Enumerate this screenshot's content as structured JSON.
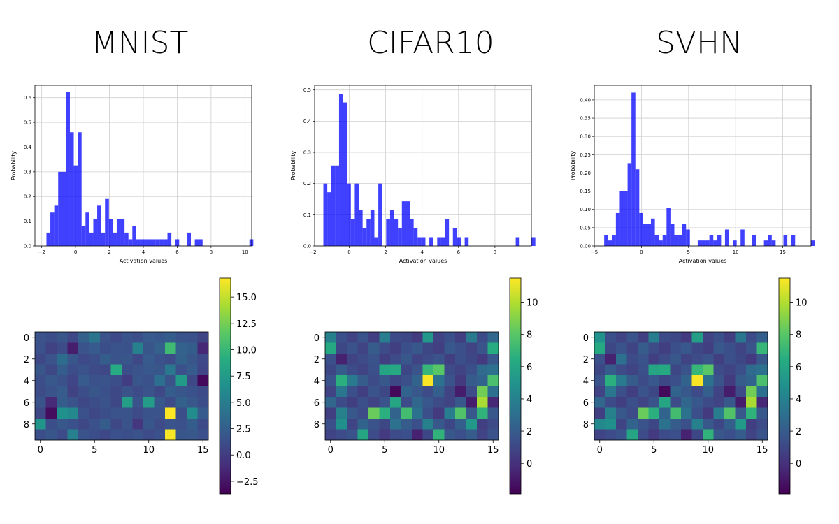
{
  "figure": {
    "titles": [
      "MNIST",
      "CIFAR10",
      "SVHN"
    ]
  },
  "chart_data": [
    {
      "type": "bar",
      "title": "MNIST",
      "xlabel": "Activation values",
      "ylabel": "Probability",
      "xlim": [
        -2.4,
        10.4
      ],
      "ylim": [
        0,
        0.65
      ],
      "xticks": [
        -2,
        0,
        2,
        4,
        6,
        8,
        10
      ],
      "yticks": [
        0.0,
        0.1,
        0.2,
        0.3,
        0.4,
        0.5,
        0.6
      ],
      "grid": true,
      "color": "#0000ff",
      "bin_start": -1.72,
      "bin_width": 0.2305,
      "values": [
        0.054,
        0.135,
        0.163,
        0.3,
        0.3,
        0.623,
        0.46,
        0.326,
        0.46,
        0.082,
        0.135,
        0.054,
        0.109,
        0.163,
        0.054,
        0.19,
        0.109,
        0.054,
        0.109,
        0.109,
        0.054,
        0.027,
        0.082,
        0.027,
        0.027,
        0.027,
        0.027,
        0.027,
        0.027,
        0.027,
        0.027,
        0.054,
        0,
        0.027,
        0,
        0,
        0.054,
        0,
        0.027,
        0.027,
        0,
        0,
        0,
        0,
        0,
        0,
        0,
        0,
        0,
        0,
        0,
        0,
        0.027
      ]
    },
    {
      "type": "bar",
      "title": "CIFAR10",
      "xlabel": "Activation values",
      "ylabel": "Probability",
      "xlim": [
        -1.9,
        10.0
      ],
      "ylim": [
        0,
        0.515
      ],
      "xticks": [
        -2,
        0,
        2,
        4,
        6,
        8
      ],
      "yticks": [
        0.0,
        0.1,
        0.2,
        0.3,
        0.4,
        0.5
      ],
      "grid": true,
      "color": "#0000ff",
      "bin_start": -1.42,
      "bin_width": 0.2155,
      "values": [
        0.2,
        0.172,
        0.258,
        0.258,
        0.488,
        0.46,
        0.2,
        0.086,
        0.2,
        0.115,
        0.057,
        0.086,
        0.115,
        0.028,
        0.2,
        0,
        0.086,
        0.115,
        0.086,
        0.057,
        0.143,
        0.143,
        0.086,
        0.057,
        0.028,
        0.028,
        0,
        0.028,
        0,
        0.028,
        0.028,
        0.086,
        0,
        0.057,
        0.028,
        0,
        0.028,
        0,
        0,
        0,
        0,
        0,
        0,
        0,
        0,
        0,
        0,
        0,
        0,
        0.028,
        0,
        0,
        0,
        0.028
      ]
    },
    {
      "type": "bar",
      "title": "SVHN",
      "xlabel": "Activation values",
      "ylabel": "Probability",
      "xlim": [
        -5.0,
        18.0
      ],
      "ylim": [
        0,
        0.44
      ],
      "xticks": [
        -5,
        0,
        5,
        10,
        15
      ],
      "yticks": [
        0.0,
        0.05,
        0.1,
        0.15,
        0.2,
        0.25,
        0.3,
        0.35,
        0.4
      ],
      "grid": true,
      "color": "#0000ff",
      "bin_start": -3.95,
      "bin_width": 0.4135,
      "values": [
        0.03,
        0.015,
        0.03,
        0.09,
        0.15,
        0.15,
        0.225,
        0.42,
        0.21,
        0.09,
        0.06,
        0.06,
        0.075,
        0.03,
        0.015,
        0.03,
        0.105,
        0.06,
        0.03,
        0.03,
        0.06,
        0.045,
        0,
        0,
        0.015,
        0.015,
        0.015,
        0.03,
        0.015,
        0.03,
        0,
        0.045,
        0,
        0.015,
        0,
        0.045,
        0,
        0,
        0.03,
        0,
        0,
        0.015,
        0.03,
        0.015,
        0,
        0,
        0.03,
        0,
        0.03,
        0,
        0,
        0,
        0,
        0.015
      ]
    },
    {
      "type": "heatmap",
      "title": "MNIST",
      "rows": 10,
      "cols": 16,
      "xticks": [
        0,
        5,
        10,
        15
      ],
      "yticks": [
        0,
        2,
        4,
        6,
        8
      ],
      "colormap": "viridis",
      "vmin": -3.7,
      "vmax": 16.8,
      "colorbar_ticks": [
        15.0,
        12.5,
        10.0,
        7.5,
        5.0,
        2.5,
        0.0,
        -2.5
      ],
      "colorbar_labels": [
        "15.0",
        "12.5",
        "10.0",
        "7.5",
        "5.0",
        "2.5",
        "0.0",
        "−2.5"
      ],
      "matrix": [
        [
          1.5,
          1.2,
          1.8,
          0.8,
          2.6,
          4.2,
          1.5,
          0.9,
          1.6,
          1.3,
          2.2,
          1.9,
          2.4,
          1.6,
          1.4,
          0.5
        ],
        [
          1.4,
          0.4,
          1.0,
          -2.0,
          1.6,
          2.2,
          1.2,
          1.6,
          1.4,
          5.2,
          1.8,
          2.6,
          10.3,
          2.8,
          2.4,
          -1.4
        ],
        [
          0.8,
          1.6,
          3.6,
          1.8,
          0.9,
          1.2,
          2.4,
          1.6,
          1.8,
          0.8,
          2.2,
          1.4,
          1.0,
          2.6,
          1.8,
          0.9
        ],
        [
          1.8,
          0.8,
          2.4,
          1.2,
          1.6,
          1.0,
          0.8,
          8.9,
          1.2,
          1.6,
          2.0,
          1.8,
          4.6,
          1.4,
          2.2,
          0.6
        ],
        [
          1.2,
          2.0,
          1.4,
          0.6,
          2.2,
          1.4,
          1.6,
          1.2,
          0.0,
          1.8,
          1.4,
          3.8,
          1.6,
          7.5,
          0.8,
          -3.2
        ],
        [
          1.0,
          1.6,
          2.2,
          0.4,
          1.2,
          1.8,
          1.4,
          0.8,
          1.6,
          1.0,
          1.6,
          0.8,
          2.4,
          1.8,
          1.4,
          1.0
        ],
        [
          1.6,
          -1.2,
          2.4,
          1.6,
          0.8,
          1.2,
          1.6,
          0.8,
          7.8,
          1.6,
          7.6,
          2.0,
          1.0,
          2.6,
          2.0,
          1.2
        ],
        [
          0.8,
          -3.0,
          6.6,
          6.0,
          1.4,
          0.8,
          1.2,
          1.6,
          1.6,
          1.0,
          1.6,
          1.6,
          16.8,
          1.2,
          6.2,
          2.2
        ],
        [
          7.0,
          1.2,
          2.0,
          1.4,
          0.8,
          1.4,
          2.4,
          0.8,
          1.6,
          -0.4,
          1.8,
          1.0,
          1.6,
          1.4,
          2.4,
          1.0
        ],
        [
          1.2,
          1.8,
          1.0,
          5.2,
          1.6,
          1.2,
          0.8,
          1.4,
          1.2,
          1.6,
          1.0,
          1.4,
          16.6,
          1.8,
          2.0,
          1.4
        ]
      ]
    },
    {
      "type": "heatmap",
      "title": "CIFAR10",
      "rows": 10,
      "cols": 16,
      "xticks": [
        0,
        5,
        10,
        15
      ],
      "yticks": [
        0,
        2,
        4,
        6,
        8
      ],
      "colormap": "viridis",
      "vmin": -1.9,
      "vmax": 11.5,
      "colorbar_ticks": [
        10,
        8,
        6,
        4,
        2,
        0
      ],
      "colorbar_labels": [
        "10",
        "8",
        "6",
        "4",
        "2",
        "0"
      ],
      "matrix": [
        [
          4.0,
          1.4,
          0.8,
          1.6,
          0.6,
          3.8,
          1.2,
          1.0,
          0.4,
          5.2,
          0.8,
          1.4,
          0.6,
          3.6,
          1.2,
          2.6
        ],
        [
          6.2,
          1.0,
          1.6,
          0.8,
          2.0,
          1.2,
          0.6,
          1.4,
          1.8,
          1.0,
          0.6,
          1.8,
          1.4,
          0.8,
          1.6,
          6.4
        ],
        [
          1.4,
          -0.6,
          0.8,
          1.2,
          1.6,
          0.6,
          1.2,
          1.8,
          0.8,
          1.2,
          1.6,
          0.6,
          1.4,
          1.0,
          0.4,
          1.8
        ],
        [
          1.0,
          2.0,
          1.2,
          0.8,
          1.4,
          6.0,
          6.2,
          1.0,
          1.6,
          7.0,
          8.0,
          1.2,
          0.8,
          1.4,
          2.8,
          3.2
        ],
        [
          1.6,
          6.6,
          3.6,
          2.0,
          1.2,
          1.8,
          1.0,
          1.4,
          2.4,
          11.4,
          3.2,
          1.6,
          0.4,
          2.0,
          2.4,
          7.6
        ],
        [
          0.8,
          3.4,
          1.4,
          0.6,
          1.6,
          1.0,
          -1.6,
          2.4,
          1.8,
          1.2,
          2.2,
          0.8,
          -0.8,
          1.2,
          8.6,
          3.0
        ],
        [
          2.6,
          1.2,
          0.6,
          1.4,
          0.8,
          1.6,
          6.0,
          1.2,
          2.6,
          1.8,
          1.2,
          0.8,
          1.8,
          -0.8,
          9.8,
          -0.4
        ],
        [
          0.6,
          4.0,
          1.8,
          1.2,
          8.4,
          6.6,
          2.4,
          7.4,
          3.2,
          1.4,
          0.4,
          3.8,
          7.8,
          1.8,
          6.8,
          1.8
        ],
        [
          1.4,
          4.8,
          0.8,
          2.4,
          1.6,
          1.0,
          3.2,
          2.0,
          1.4,
          4.0,
          1.8,
          1.0,
          2.2,
          5.4,
          0.6,
          1.2
        ],
        [
          0.8,
          1.2,
          1.6,
          6.0,
          1.2,
          0.4,
          1.2,
          1.4,
          -0.6,
          1.0,
          6.8,
          1.8,
          1.4,
          2.0,
          0.8,
          1.6
        ]
      ]
    },
    {
      "type": "heatmap",
      "title": "SVHN",
      "rows": 10,
      "cols": 16,
      "xticks": [
        0,
        5,
        10,
        15
      ],
      "yticks": [
        0,
        2,
        4,
        6,
        8
      ],
      "colormap": "viridis",
      "vmin": -1.9,
      "vmax": 11.5,
      "colorbar_ticks": [
        10,
        8,
        6,
        4,
        2,
        0
      ],
      "colorbar_labels": [
        "10",
        "8",
        "6",
        "4",
        "2",
        "0"
      ],
      "matrix": [
        [
          5.0,
          1.4,
          0.8,
          1.6,
          0.6,
          3.8,
          1.2,
          1.0,
          0.4,
          5.6,
          0.8,
          1.4,
          0.6,
          3.4,
          1.2,
          2.2
        ],
        [
          6.2,
          1.0,
          1.6,
          0.8,
          2.0,
          1.2,
          0.6,
          1.4,
          1.8,
          1.0,
          0.6,
          1.8,
          1.4,
          0.8,
          1.6,
          7.0
        ],
        [
          1.4,
          -0.6,
          3.0,
          1.2,
          1.6,
          0.6,
          1.2,
          1.8,
          0.8,
          1.2,
          1.6,
          0.6,
          1.4,
          1.0,
          0.4,
          1.8
        ],
        [
          1.0,
          2.0,
          1.2,
          0.8,
          1.4,
          6.0,
          6.2,
          1.0,
          1.6,
          7.0,
          8.0,
          1.2,
          0.8,
          1.4,
          2.8,
          3.2
        ],
        [
          1.6,
          6.6,
          3.6,
          2.0,
          1.2,
          1.8,
          1.0,
          1.4,
          2.4,
          11.4,
          3.2,
          1.6,
          0.4,
          2.0,
          2.4,
          7.6
        ],
        [
          0.8,
          3.4,
          1.4,
          0.6,
          1.6,
          1.0,
          -1.6,
          2.4,
          1.8,
          1.2,
          2.2,
          0.8,
          -0.8,
          1.2,
          8.6,
          3.0
        ],
        [
          2.6,
          1.2,
          0.6,
          1.4,
          0.8,
          1.6,
          6.0,
          1.2,
          2.6,
          1.8,
          1.2,
          0.8,
          1.8,
          -0.8,
          9.8,
          -0.4
        ],
        [
          0.6,
          4.0,
          1.8,
          1.2,
          8.4,
          6.6,
          2.4,
          7.4,
          3.2,
          1.4,
          0.4,
          3.8,
          7.8,
          1.8,
          6.8,
          1.8
        ],
        [
          4.4,
          4.8,
          0.8,
          2.4,
          1.6,
          1.0,
          3.2,
          2.0,
          1.4,
          4.0,
          1.8,
          1.0,
          2.2,
          5.4,
          0.6,
          1.2
        ],
        [
          0.8,
          1.2,
          1.6,
          6.0,
          1.2,
          0.4,
          1.2,
          1.4,
          -0.6,
          1.0,
          6.8,
          1.8,
          1.4,
          2.0,
          0.8,
          1.6
        ]
      ]
    }
  ]
}
